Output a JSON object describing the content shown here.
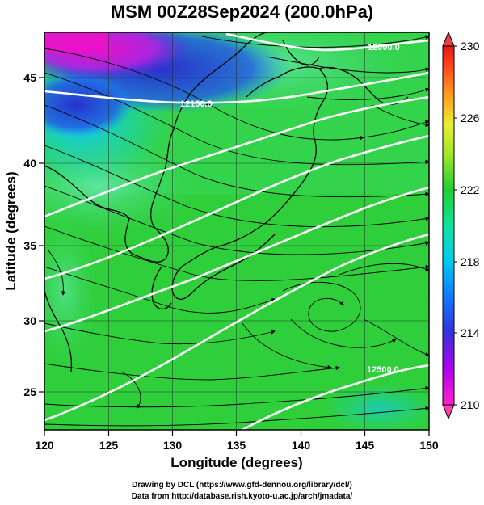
{
  "title": "MSM 00Z28Sep2024 (200.0hPa)",
  "xlabel": "Longitude (degrees)",
  "ylabel": "Latitude  (degrees)",
  "x_ticks": [
    "120",
    "125",
    "130",
    "135",
    "140",
    "145",
    "150"
  ],
  "y_ticks": [
    "25",
    "30",
    "35",
    "40",
    "45"
  ],
  "colorbar_ticks": [
    "230",
    "226",
    "222",
    "218",
    "214",
    "210"
  ],
  "contour_labels": [
    "12000.0",
    "12100.0",
    "12500.0"
  ],
  "credits": {
    "line1": "Drawing by DCL (https://www.gfd-dennou.org/library/dcl/)",
    "line2": "Data from http://database.rish.kyoto-u.ac.jp/arch/jmadata/"
  },
  "colors": {
    "low": "#ff00cc",
    "mid_low": "#2a46d8",
    "mid": "#25d23f",
    "high": "#e62a1e"
  },
  "chart_data": {
    "type": "heatmap",
    "title": "MSM 00Z28Sep2024 (200.0hPa)",
    "xlabel": "Longitude (degrees)",
    "ylabel": "Latitude  (degrees)",
    "xlim": [
      120,
      150
    ],
    "ylim": [
      22.5,
      47.5
    ],
    "x_ticks": [
      120,
      125,
      130,
      135,
      140,
      145,
      150
    ],
    "y_ticks": [
      25,
      30,
      35,
      40,
      45
    ],
    "colorbar_range": [
      210,
      230
    ],
    "colorbar_ticks": [
      210,
      214,
      218,
      222,
      226,
      230
    ],
    "contour_labels": [
      "12000.0",
      "12100.0",
      "12500.0"
    ]
  }
}
